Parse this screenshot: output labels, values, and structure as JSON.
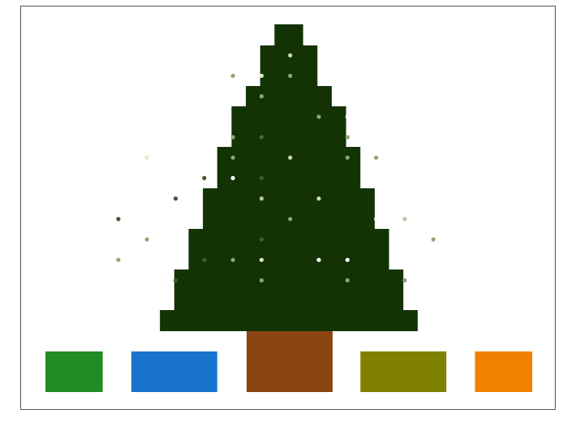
{
  "tree": {
    "color": "#133305",
    "row_half_widths": [
      0.5,
      1,
      1.5,
      2,
      2.5,
      3,
      3.5,
      4,
      4.5
    ]
  },
  "trunk": {
    "color": "#8b4513",
    "col_from": 7,
    "col_to": 10
  },
  "lights": [
    {
      "col": 9,
      "row": 2,
      "color": "#c8dcb4"
    },
    {
      "col": 7,
      "row": 3,
      "color": "#8aa878"
    },
    {
      "col": 8,
      "row": 3,
      "color": "#dcecc8"
    },
    {
      "col": 9,
      "row": 3,
      "color": "#8aa878"
    },
    {
      "col": 8,
      "row": 4,
      "color": "#8aa878"
    },
    {
      "col": 11,
      "row": 4,
      "color": "#ffffff"
    },
    {
      "col": 10,
      "row": 5,
      "color": "#8aa878"
    },
    {
      "col": 11,
      "row": 5,
      "color": "#ffffff"
    },
    {
      "col": 12,
      "row": 5,
      "color": "#ffffff"
    },
    {
      "col": 7,
      "row": 6,
      "color": "#8aa878"
    },
    {
      "col": 8,
      "row": 6,
      "color": "#4a6a3a"
    },
    {
      "col": 11,
      "row": 6,
      "color": "#8aa878"
    },
    {
      "col": 4,
      "row": 7,
      "color": "#dcecc8"
    },
    {
      "col": 7,
      "row": 7,
      "color": "#8aa878"
    },
    {
      "col": 9,
      "row": 7,
      "color": "#c8dcb4"
    },
    {
      "col": 11,
      "row": 7,
      "color": "#8aa878"
    },
    {
      "col": 12,
      "row": 7,
      "color": "#8aa878"
    },
    {
      "col": 6,
      "row": 8,
      "color": "#3d5a30"
    },
    {
      "col": 7,
      "row": 8,
      "color": "#ffffff"
    },
    {
      "col": 8,
      "row": 8,
      "color": "#3d5a30"
    },
    {
      "col": 5,
      "row": 9,
      "color": "#3d5a30"
    },
    {
      "col": 8,
      "row": 9,
      "color": "#b4c8a0"
    },
    {
      "col": 10,
      "row": 9,
      "color": "#c8dcb4"
    },
    {
      "col": 3,
      "row": 10,
      "color": "#3d5a30"
    },
    {
      "col": 9,
      "row": 10,
      "color": "#8aa878"
    },
    {
      "col": 12,
      "row": 10,
      "color": "#ffffff"
    },
    {
      "col": 13,
      "row": 10,
      "color": "#b4c8a0"
    },
    {
      "col": 4,
      "row": 11,
      "color": "#8aa878"
    },
    {
      "col": 8,
      "row": 11,
      "color": "#3d5a30"
    },
    {
      "col": 14,
      "row": 11,
      "color": "#8aa878"
    },
    {
      "col": 15,
      "row": 11,
      "color": "#ffffff"
    },
    {
      "col": 3,
      "row": 12,
      "color": "#8aa878"
    },
    {
      "col": 5,
      "row": 12,
      "color": "#ffffff"
    },
    {
      "col": 6,
      "row": 12,
      "color": "#3d5a30"
    },
    {
      "col": 7,
      "row": 12,
      "color": "#8aa878"
    },
    {
      "col": 8,
      "row": 12,
      "color": "#dcecc8"
    },
    {
      "col": 10,
      "row": 12,
      "color": "#ffffff"
    },
    {
      "col": 11,
      "row": 12,
      "color": "#ffffff"
    },
    {
      "col": 5,
      "row": 13,
      "color": "#3d5a30"
    },
    {
      "col": 8,
      "row": 13,
      "color": "#8aa878"
    },
    {
      "col": 11,
      "row": 13,
      "color": "#8aa878"
    },
    {
      "col": 13,
      "row": 13,
      "color": "#8aa878"
    }
  ],
  "palette": [
    {
      "name": "green",
      "color": "#228b22",
      "col_from": 0,
      "col_to": 2
    },
    {
      "name": "blue",
      "color": "#1874cd",
      "col_from": 3,
      "col_to": 6
    },
    {
      "name": "olive",
      "color": "#808000",
      "col_from": 11,
      "col_to": 14
    },
    {
      "name": "orange",
      "color": "#f08000",
      "col_from": 15,
      "col_to": 17
    }
  ]
}
